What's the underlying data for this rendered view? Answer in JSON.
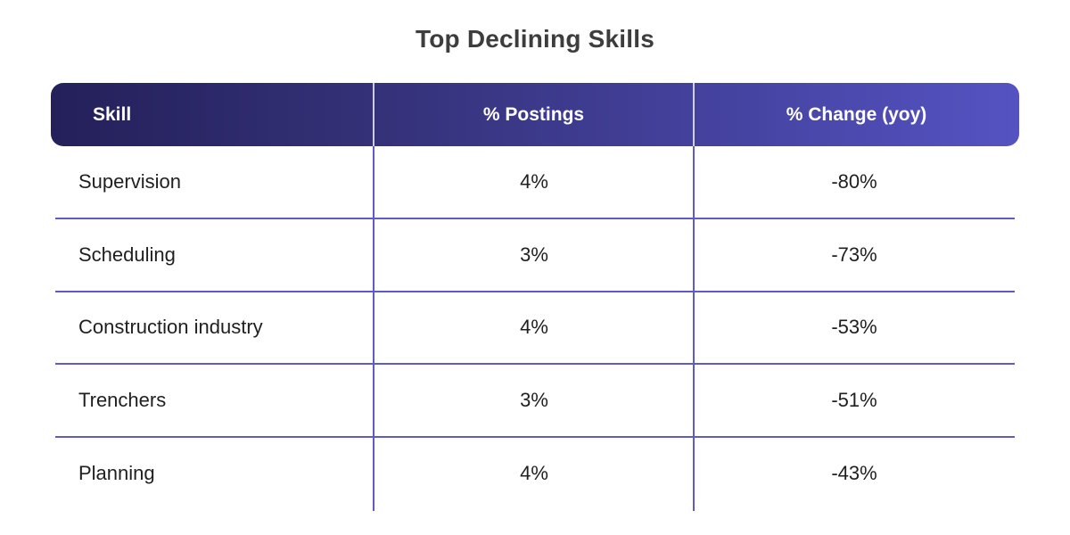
{
  "chart_data": {
    "type": "table",
    "title": "Top Declining Skills",
    "columns": [
      "Skill",
      "% Postings",
      "% Change (yoy)"
    ],
    "rows": [
      [
        "Supervision",
        "4%",
        "-80%"
      ],
      [
        "Scheduling",
        "3%",
        "-73%"
      ],
      [
        "Construction industry",
        "4%",
        "-53%"
      ],
      [
        "Trenchers",
        "3%",
        "-51%"
      ],
      [
        "Planning",
        "4%",
        "-43%"
      ]
    ]
  },
  "colors": {
    "header_gradient_start": "#24205a",
    "header_gradient_end": "#5553c2",
    "grid_line": "#5e5bc8",
    "title_text": "#3d3d3d"
  }
}
